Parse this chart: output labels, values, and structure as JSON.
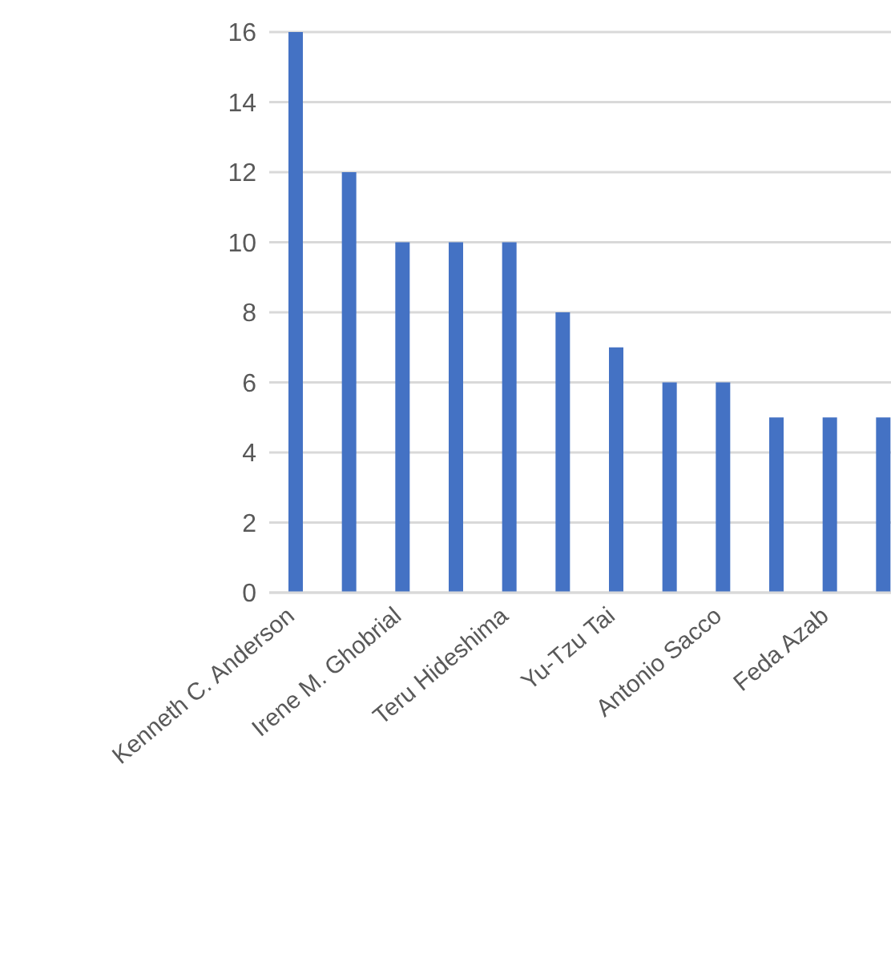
{
  "chart_data": {
    "type": "bar",
    "categories": [
      "Kenneth C. Anderson",
      null,
      "Irene M. Ghobrial",
      null,
      "Teru Hideshima",
      null,
      "Yu-Tzu Tai",
      null,
      "Antonio Sacco",
      null,
      "Feda Azab",
      null
    ],
    "values": [
      16,
      12,
      10,
      10,
      10,
      8,
      7,
      6,
      6,
      5,
      5,
      5
    ],
    "color": "#4472c4",
    "ylim": [
      0,
      16
    ],
    "yticks": [
      0,
      2,
      4,
      6,
      8,
      10,
      12,
      14,
      16
    ],
    "grid": "y"
  }
}
